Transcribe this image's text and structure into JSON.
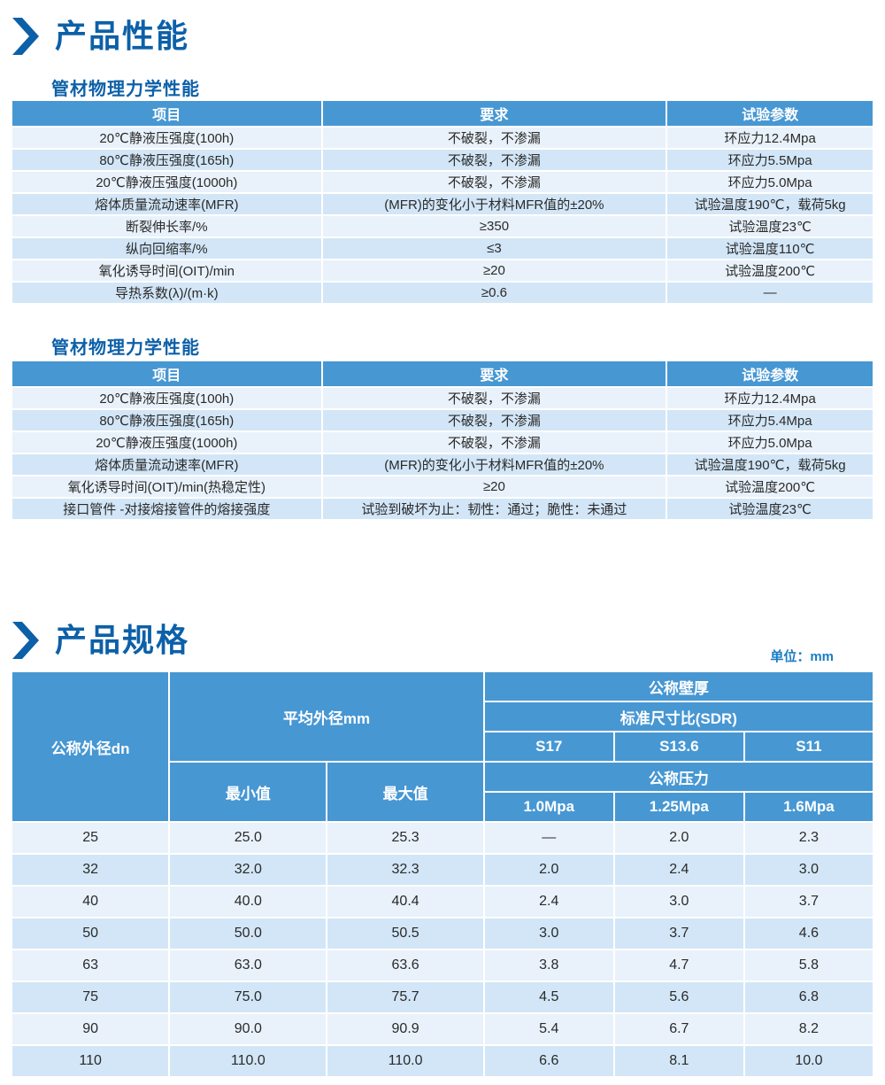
{
  "page": {
    "section1_title": "产品性能",
    "section2_title": "产品规格",
    "unit_label": "单位：mm"
  },
  "colors": {
    "accent_blue": "#0c60a8",
    "table_header_blue": "#4797d3",
    "row_light": "#e9f2fb",
    "row_dark": "#d2e6f7"
  },
  "perf_tables": [
    {
      "title": "管材物理力学性能",
      "headers": [
        "项目",
        "要求",
        "试验参数"
      ],
      "rows": [
        [
          "20℃静液压强度(100h)",
          "不破裂，不渗漏",
          "环应力12.4Mpa"
        ],
        [
          "80℃静液压强度(165h)",
          "不破裂，不渗漏",
          "环应力5.5Mpa"
        ],
        [
          "20℃静液压强度(1000h)",
          "不破裂，不渗漏",
          "环应力5.0Mpa"
        ],
        [
          "熔体质量流动速率(MFR)",
          "(MFR)的变化小于材料MFR值的±20%",
          "试验温度190℃，载荷5kg"
        ],
        [
          "断裂伸长率/%",
          "≥350",
          "试验温度23℃"
        ],
        [
          "纵向回缩率/%",
          "≤3",
          "试验温度110℃"
        ],
        [
          "氧化诱导时间(OIT)/min",
          "≥20",
          "试验温度200℃"
        ],
        [
          "导热系数(λ)/(m·k)",
          "≥0.6",
          "—"
        ]
      ]
    },
    {
      "title": "管材物理力学性能",
      "headers": [
        "项目",
        "要求",
        "试验参数"
      ],
      "rows": [
        [
          "20℃静液压强度(100h)",
          "不破裂，不渗漏",
          "环应力12.4Mpa"
        ],
        [
          "80℃静液压强度(165h)",
          "不破裂，不渗漏",
          "环应力5.4Mpa"
        ],
        [
          "20℃静液压强度(1000h)",
          "不破裂，不渗漏",
          "环应力5.0Mpa"
        ],
        [
          "熔体质量流动速率(MFR)",
          "(MFR)的变化小于材料MFR值的±20%",
          "试验温度190℃，载荷5kg"
        ],
        [
          "氧化诱导时间(OIT)/min(热稳定性)",
          "≥20",
          "试验温度200℃"
        ],
        [
          "接口管件 -对接熔接管件的熔接强度",
          "试验到破坏为止：韧性：通过；脆性：未通过",
          "试验温度23℃"
        ]
      ]
    }
  ],
  "spec_table": {
    "header": {
      "dn": "公称外径dn",
      "avg_od": "平均外径mm",
      "min": "最小值",
      "max": "最大值",
      "wall": "公称壁厚",
      "sdr": "标准尺寸比(SDR)",
      "sdr_cols": [
        "S17",
        "S13.6",
        "S11"
      ],
      "pressure": "公称压力",
      "pressure_cols": [
        "1.0Mpa",
        "1.25Mpa",
        "1.6Mpa"
      ]
    },
    "rows": [
      [
        "25",
        "25.0",
        "25.3",
        "—",
        "2.0",
        "2.3"
      ],
      [
        "32",
        "32.0",
        "32.3",
        "2.0",
        "2.4",
        "3.0"
      ],
      [
        "40",
        "40.0",
        "40.4",
        "2.4",
        "3.0",
        "3.7"
      ],
      [
        "50",
        "50.0",
        "50.5",
        "3.0",
        "3.7",
        "4.6"
      ],
      [
        "63",
        "63.0",
        "63.6",
        "3.8",
        "4.7",
        "5.8"
      ],
      [
        "75",
        "75.0",
        "75.7",
        "4.5",
        "5.6",
        "6.8"
      ],
      [
        "90",
        "90.0",
        "90.9",
        "5.4",
        "6.7",
        "8.2"
      ],
      [
        "110",
        "110.0",
        "110.0",
        "6.6",
        "8.1",
        "10.0"
      ]
    ]
  }
}
